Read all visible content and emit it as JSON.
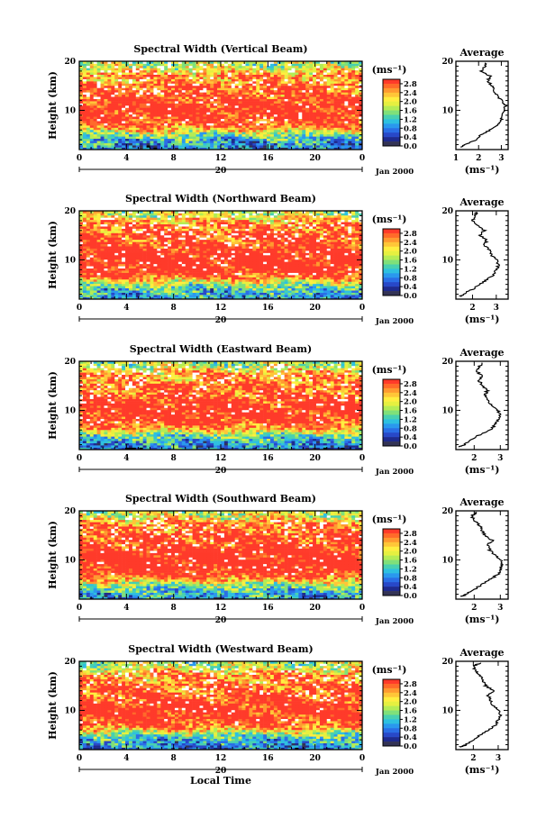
{
  "figure": {
    "xlabel": "Local Time",
    "date_day": "20",
    "date_month_year": "Jan 2000",
    "colorbar_unit": "(ms⁻¹)",
    "avg_title": "Average",
    "avg_xlabel": "(ms⁻¹)"
  },
  "chart_data": [
    {
      "type": "heatmap",
      "title": "Spectral Width (Vertical Beam)",
      "ylabel": "Height (km)",
      "x_ticks": [
        "0",
        "4",
        "8",
        "12",
        "16",
        "20",
        "0"
      ],
      "xlim": [
        0,
        24
      ],
      "y_ticks": [
        "10",
        "20"
      ],
      "ylim": [
        2,
        20
      ],
      "colorbar": {
        "label": "(ms⁻¹)",
        "ticks": [
          "2.8",
          "2.4",
          "2.0",
          "1.6",
          "1.2",
          "0.8",
          "0.4",
          "0.0"
        ],
        "range": [
          0,
          3.0
        ]
      },
      "average_profile": {
        "title": "Average",
        "xlabel": "(ms⁻¹)",
        "x_ticks": [
          "1",
          "2",
          "3"
        ],
        "xlim": [
          1,
          3.3
        ],
        "height": [
          2.5,
          3,
          4,
          5,
          6,
          7,
          8,
          9,
          10,
          11,
          12,
          13,
          14,
          15,
          16,
          17,
          18,
          19,
          19.7
        ],
        "width": [
          1.2,
          1.4,
          1.9,
          2.1,
          2.5,
          2.8,
          3.0,
          3.05,
          3.1,
          3.2,
          3.0,
          2.8,
          2.7,
          2.6,
          2.4,
          2.5,
          2.1,
          2.3,
          2.3
        ]
      }
    },
    {
      "type": "heatmap",
      "title": "Spectral Width (Northward Beam)",
      "ylabel": "Height (km)",
      "x_ticks": [
        "0",
        "4",
        "8",
        "12",
        "16",
        "20",
        "0"
      ],
      "xlim": [
        0,
        24
      ],
      "y_ticks": [
        "10",
        "20"
      ],
      "ylim": [
        2,
        20
      ],
      "colorbar": {
        "label": "(ms⁻¹)",
        "ticks": [
          "2.8",
          "2.4",
          "2.0",
          "1.6",
          "1.2",
          "0.8",
          "0.4",
          "0.0"
        ],
        "range": [
          0,
          3.0
        ]
      },
      "average_profile": {
        "title": "Average",
        "xlabel": "(ms⁻¹)",
        "x_ticks": [
          "2",
          "3"
        ],
        "xlim": [
          1.3,
          3.5
        ],
        "height": [
          2.5,
          3,
          4,
          5,
          6,
          7,
          8,
          9,
          10,
          11,
          12,
          13,
          14,
          15,
          16,
          17,
          18,
          19,
          19.7
        ],
        "width": [
          1.5,
          1.6,
          2.0,
          2.3,
          2.6,
          2.9,
          3.0,
          3.1,
          3.0,
          2.8,
          2.7,
          2.5,
          2.6,
          2.3,
          2.5,
          2.2,
          2.0,
          2.1,
          2.2
        ]
      }
    },
    {
      "type": "heatmap",
      "title": "Spectral Width (Eastward Beam)",
      "ylabel": "Height (km)",
      "x_ticks": [
        "0",
        "4",
        "8",
        "12",
        "16",
        "20",
        "0"
      ],
      "xlim": [
        0,
        24
      ],
      "y_ticks": [
        "10",
        "20"
      ],
      "ylim": [
        2,
        20
      ],
      "colorbar": {
        "label": "(ms⁻¹)",
        "ticks": [
          "2.8",
          "2.4",
          "2.0",
          "1.6",
          "1.2",
          "0.8",
          "0.4",
          "0.0"
        ],
        "range": [
          0,
          3.0
        ]
      },
      "average_profile": {
        "title": "Average",
        "xlabel": "(ms⁻¹)",
        "x_ticks": [
          "2",
          "3"
        ],
        "xlim": [
          1.3,
          3.3
        ],
        "height": [
          2.5,
          3,
          4,
          5,
          6,
          7,
          8,
          9,
          10,
          11,
          12,
          13,
          14,
          15,
          16,
          17,
          18,
          19,
          19.7
        ],
        "width": [
          1.4,
          1.6,
          1.9,
          2.2,
          2.6,
          2.8,
          2.9,
          3.0,
          2.9,
          2.7,
          2.5,
          2.4,
          2.5,
          2.3,
          2.2,
          2.3,
          2.1,
          2.2,
          2.3
        ]
      }
    },
    {
      "type": "heatmap",
      "title": "Spectral Width (Southward Beam)",
      "ylabel": "Height (km)",
      "x_ticks": [
        "0",
        "4",
        "8",
        "12",
        "16",
        "20",
        "0"
      ],
      "xlim": [
        0,
        24
      ],
      "y_ticks": [
        "10",
        "20"
      ],
      "ylim": [
        2,
        20
      ],
      "colorbar": {
        "label": "(ms⁻¹)",
        "ticks": [
          "2.8",
          "2.4",
          "2.0",
          "1.6",
          "1.2",
          "0.8",
          "0.4",
          "0.0"
        ],
        "range": [
          0,
          3.0
        ]
      },
      "average_profile": {
        "title": "Average",
        "xlabel": "(ms⁻¹)",
        "x_ticks": [
          "2",
          "3"
        ],
        "xlim": [
          1.3,
          3.3
        ],
        "height": [
          2.5,
          3,
          4,
          5,
          6,
          7,
          8,
          9,
          10,
          11,
          12,
          13,
          14,
          15,
          16,
          17,
          18,
          19,
          19.7
        ],
        "width": [
          1.5,
          1.7,
          2.0,
          2.3,
          2.6,
          2.9,
          3.0,
          3.1,
          3.0,
          2.8,
          2.6,
          2.5,
          2.7,
          2.4,
          2.3,
          2.2,
          2.0,
          1.9,
          2.1
        ]
      }
    },
    {
      "type": "heatmap",
      "title": "Spectral Width (Westward Beam)",
      "ylabel": "Height (km)",
      "x_ticks": [
        "0",
        "4",
        "8",
        "12",
        "16",
        "20",
        "0"
      ],
      "xlim": [
        0,
        24
      ],
      "y_ticks": [
        "10",
        "20"
      ],
      "ylim": [
        2,
        20
      ],
      "colorbar": {
        "label": "(ms⁻¹)",
        "ticks": [
          "2.8",
          "2.4",
          "2.0",
          "1.6",
          "1.2",
          "0.8",
          "0.4",
          "0.0"
        ],
        "range": [
          0,
          3.0
        ]
      },
      "average_profile": {
        "title": "Average",
        "xlabel": "(ms⁻¹)",
        "x_ticks": [
          "2",
          "3"
        ],
        "xlim": [
          1.3,
          3.4
        ],
        "height": [
          2.5,
          3,
          4,
          5,
          6,
          7,
          8,
          9,
          10,
          11,
          12,
          13,
          14,
          15,
          16,
          17,
          18,
          19,
          19.7
        ],
        "width": [
          1.5,
          1.7,
          2.0,
          2.3,
          2.6,
          2.9,
          3.0,
          3.1,
          3.0,
          2.8,
          2.7,
          2.6,
          2.8,
          2.5,
          2.4,
          2.3,
          2.1,
          2.0,
          2.3
        ]
      }
    }
  ]
}
